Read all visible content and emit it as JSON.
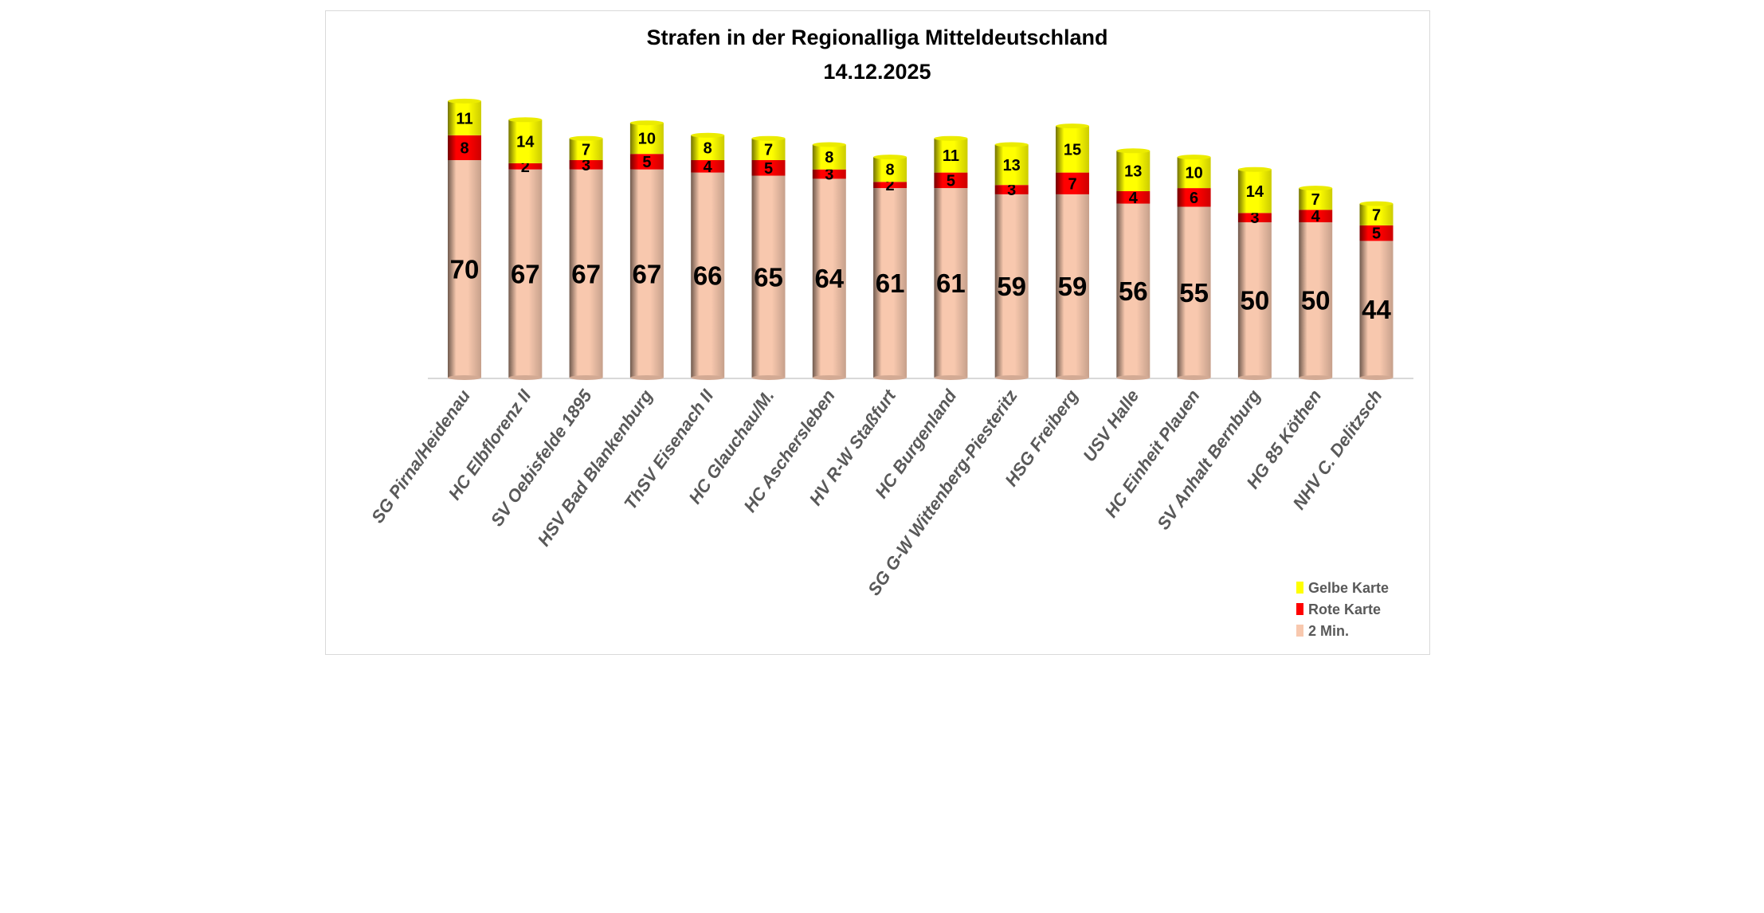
{
  "chart_data": {
    "type": "bar",
    "stacked": true,
    "title": "Strafen in der Regionalliga Mitteldeutschland",
    "subtitle": "14.12.2025",
    "xlabel": "",
    "ylabel": "",
    "grid": false,
    "legend_position": "bottom-right",
    "categories": [
      "SG Pirna/Heidenau",
      "HC Elbflorenz II",
      "SV Oebisfelde 1895",
      "HSV Bad Blankenburg",
      "ThSV Eisenach II",
      "HC Glauchau/M.",
      "HC Aschersleben",
      "HV R-W Staßfurt",
      "HC Burgenland",
      "SG G-W Wittenberg-Piesteritz",
      "HSG Freiberg",
      "USV Halle",
      "HC Einheit Plauen",
      "SV Anhalt Bernburg",
      "HG 85 Köthen",
      "NHV C. Delitzsch"
    ],
    "series": [
      {
        "name": "2 Min.",
        "color": "#F8C8AE",
        "values": [
          70,
          67,
          67,
          67,
          66,
          65,
          64,
          61,
          61,
          59,
          59,
          56,
          55,
          50,
          50,
          44
        ]
      },
      {
        "name": "Rote Karte",
        "color": "#FF0000",
        "values": [
          8,
          2,
          3,
          5,
          4,
          5,
          3,
          2,
          5,
          3,
          7,
          4,
          6,
          3,
          4,
          5
        ]
      },
      {
        "name": "Gelbe Karte",
        "color": "#FFFF00",
        "values": [
          11,
          14,
          7,
          10,
          8,
          7,
          8,
          8,
          11,
          13,
          15,
          13,
          10,
          14,
          7,
          7
        ]
      }
    ],
    "legend_order": [
      "Gelbe Karte",
      "Rote Karte",
      "2 Min."
    ]
  }
}
